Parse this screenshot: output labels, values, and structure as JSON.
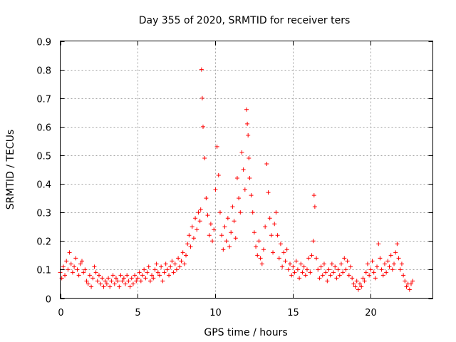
{
  "chart_data": {
    "type": "scatter",
    "title": "Day 355 of 2020, SRMTID for receiver ters",
    "xlabel": "GPS time / hours",
    "ylabel": "SRMTID / TECUs",
    "xlim": [
      0,
      24
    ],
    "ylim": [
      0,
      0.9
    ],
    "xticks": [
      "0",
      "5",
      "10",
      "15",
      "20"
    ],
    "yticks": [
      "0",
      "0.1",
      "0.2",
      "0.3",
      "0.4",
      "0.5",
      "0.6",
      "0.7",
      "0.8",
      "0.9"
    ],
    "grid": true,
    "marker": "plus",
    "color": "#ff0000",
    "series": [
      {
        "name": "SRMTID",
        "x": [
          0.0,
          0.1,
          0.2,
          0.3,
          0.4,
          0.5,
          0.6,
          0.7,
          0.8,
          0.9,
          1.0,
          1.1,
          1.2,
          1.3,
          1.4,
          1.5,
          1.6,
          1.7,
          1.8,
          1.9,
          2.0,
          2.1,
          2.2,
          2.3,
          2.4,
          2.5,
          2.6,
          2.7,
          2.8,
          2.9,
          3.0,
          3.1,
          3.2,
          3.3,
          3.4,
          3.5,
          3.6,
          3.7,
          3.8,
          3.9,
          4.0,
          4.1,
          4.2,
          4.3,
          4.4,
          4.5,
          4.6,
          4.7,
          4.8,
          4.9,
          5.0,
          5.1,
          5.2,
          5.3,
          5.4,
          5.5,
          5.6,
          5.7,
          5.8,
          5.9,
          6.0,
          6.1,
          6.2,
          6.3,
          6.4,
          6.5,
          6.6,
          6.7,
          6.8,
          6.9,
          7.0,
          7.1,
          7.2,
          7.3,
          7.4,
          7.5,
          7.6,
          7.7,
          7.8,
          7.9,
          8.0,
          8.1,
          8.2,
          8.3,
          8.4,
          8.5,
          8.6,
          8.7,
          8.8,
          8.9,
          9.0,
          9.05,
          9.1,
          9.15,
          9.2,
          9.3,
          9.4,
          9.5,
          9.6,
          9.7,
          9.8,
          9.9,
          10.0,
          10.1,
          10.2,
          10.3,
          10.4,
          10.5,
          10.6,
          10.7,
          10.8,
          10.9,
          11.0,
          11.1,
          11.2,
          11.3,
          11.4,
          11.5,
          11.6,
          11.7,
          11.8,
          11.9,
          12.0,
          12.05,
          12.1,
          12.15,
          12.2,
          12.3,
          12.4,
          12.5,
          12.6,
          12.7,
          12.8,
          12.9,
          13.0,
          13.1,
          13.2,
          13.3,
          13.4,
          13.5,
          13.6,
          13.7,
          13.8,
          13.9,
          14.0,
          14.1,
          14.2,
          14.3,
          14.4,
          14.5,
          14.6,
          14.7,
          14.8,
          14.9,
          15.0,
          15.1,
          15.2,
          15.3,
          15.4,
          15.5,
          15.6,
          15.7,
          15.8,
          15.9,
          16.0,
          16.1,
          16.2,
          16.3,
          16.35,
          16.4,
          16.5,
          16.6,
          16.7,
          16.8,
          16.9,
          17.0,
          17.1,
          17.2,
          17.3,
          17.4,
          17.5,
          17.6,
          17.7,
          17.8,
          17.9,
          18.0,
          18.1,
          18.2,
          18.3,
          18.4,
          18.5,
          18.6,
          18.7,
          18.8,
          18.9,
          19.0,
          19.1,
          19.2,
          19.3,
          19.4,
          19.5,
          19.6,
          19.7,
          19.8,
          19.9,
          20.0,
          20.1,
          20.2,
          20.3,
          20.4,
          20.5,
          20.6,
          20.7,
          20.8,
          20.9,
          21.0,
          21.1,
          21.2,
          21.3,
          21.4,
          21.5,
          21.6,
          21.7,
          21.8,
          21.9,
          22.0,
          22.1,
          22.2,
          22.3,
          22.4,
          22.5,
          22.6,
          22.7
        ],
        "y": [
          0.09,
          0.07,
          0.11,
          0.08,
          0.13,
          0.1,
          0.16,
          0.12,
          0.09,
          0.11,
          0.14,
          0.1,
          0.08,
          0.12,
          0.13,
          0.09,
          0.1,
          0.06,
          0.05,
          0.08,
          0.04,
          0.07,
          0.11,
          0.09,
          0.06,
          0.08,
          0.05,
          0.07,
          0.04,
          0.06,
          0.05,
          0.07,
          0.04,
          0.06,
          0.08,
          0.05,
          0.07,
          0.06,
          0.04,
          0.08,
          0.06,
          0.07,
          0.05,
          0.08,
          0.06,
          0.04,
          0.07,
          0.05,
          0.08,
          0.06,
          0.07,
          0.09,
          0.06,
          0.08,
          0.1,
          0.07,
          0.09,
          0.11,
          0.06,
          0.08,
          0.07,
          0.1,
          0.12,
          0.09,
          0.08,
          0.11,
          0.06,
          0.09,
          0.12,
          0.1,
          0.08,
          0.11,
          0.13,
          0.09,
          0.12,
          0.1,
          0.14,
          0.11,
          0.13,
          0.16,
          0.12,
          0.15,
          0.19,
          0.22,
          0.18,
          0.25,
          0.21,
          0.28,
          0.24,
          0.3,
          0.27,
          0.31,
          0.8,
          0.7,
          0.6,
          0.49,
          0.35,
          0.29,
          0.22,
          0.26,
          0.2,
          0.24,
          0.38,
          0.53,
          0.43,
          0.3,
          0.22,
          0.17,
          0.25,
          0.2,
          0.28,
          0.18,
          0.23,
          0.32,
          0.27,
          0.21,
          0.42,
          0.35,
          0.3,
          0.51,
          0.45,
          0.38,
          0.66,
          0.61,
          0.57,
          0.49,
          0.42,
          0.36,
          0.3,
          0.23,
          0.18,
          0.15,
          0.2,
          0.14,
          0.12,
          0.17,
          0.25,
          0.47,
          0.37,
          0.28,
          0.22,
          0.16,
          0.26,
          0.3,
          0.22,
          0.14,
          0.19,
          0.11,
          0.16,
          0.13,
          0.17,
          0.1,
          0.12,
          0.08,
          0.11,
          0.09,
          0.13,
          0.1,
          0.07,
          0.12,
          0.09,
          0.11,
          0.08,
          0.1,
          0.14,
          0.09,
          0.15,
          0.2,
          0.36,
          0.32,
          0.14,
          0.1,
          0.07,
          0.11,
          0.08,
          0.12,
          0.09,
          0.06,
          0.1,
          0.08,
          0.12,
          0.09,
          0.11,
          0.07,
          0.1,
          0.08,
          0.12,
          0.09,
          0.14,
          0.1,
          0.13,
          0.08,
          0.11,
          0.07,
          0.05,
          0.04,
          0.06,
          0.03,
          0.05,
          0.04,
          0.07,
          0.06,
          0.09,
          0.12,
          0.08,
          0.1,
          0.13,
          0.09,
          0.07,
          0.11,
          0.19,
          0.14,
          0.1,
          0.08,
          0.12,
          0.09,
          0.13,
          0.11,
          0.15,
          0.1,
          0.12,
          0.16,
          0.19,
          0.14,
          0.1,
          0.12,
          0.08,
          0.06,
          0.04,
          0.05,
          0.03,
          0.05,
          0.06
        ]
      }
    ]
  }
}
